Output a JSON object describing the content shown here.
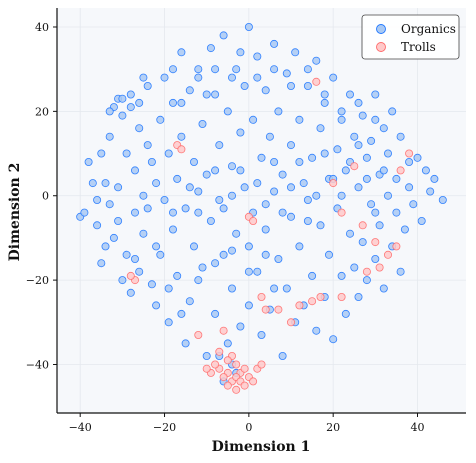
{
  "chart_data": {
    "type": "scatter",
    "title": "",
    "xlabel": "Dimension 1",
    "ylabel": "Dimension 2",
    "xlim": [
      -45.5,
      51.5
    ],
    "ylim": [
      -51.5,
      44.5
    ],
    "x_ticks": [
      -40,
      -20,
      0,
      20,
      40
    ],
    "y_ticks": [
      -40,
      -20,
      0,
      20,
      40
    ],
    "x_tick_labels": [
      "−40",
      "−20",
      "0",
      "20",
      "40"
    ],
    "y_tick_labels": [
      "−40",
      "−20",
      "0",
      "20",
      "40"
    ],
    "grid": true,
    "legend_position": "top-right",
    "series": [
      {
        "name": "Organics",
        "color": "#1f77ff",
        "fill": "#a9c9f3",
        "points": [
          [
            -40,
            -5
          ],
          [
            -39,
            -4
          ],
          [
            -38,
            8
          ],
          [
            -37,
            3
          ],
          [
            -36,
            -7
          ],
          [
            -35,
            10
          ],
          [
            -35,
            -16
          ],
          [
            -34,
            3
          ],
          [
            -33,
            -2
          ],
          [
            -33,
            14
          ],
          [
            -32,
            -10
          ],
          [
            -32,
            21
          ],
          [
            -31,
            23
          ],
          [
            -31,
            2
          ],
          [
            -30,
            19
          ],
          [
            -30,
            -20
          ],
          [
            -29,
            -14
          ],
          [
            -29,
            10
          ],
          [
            -28,
            24
          ],
          [
            -28,
            -23
          ],
          [
            -27,
            6
          ],
          [
            -27,
            -4
          ],
          [
            -26,
            16
          ],
          [
            -26,
            -18
          ],
          [
            -25,
            0
          ],
          [
            -25,
            -9
          ],
          [
            -24,
            12
          ],
          [
            -24,
            26
          ],
          [
            -23,
            -21
          ],
          [
            -23,
            8
          ],
          [
            -22,
            3
          ],
          [
            -22,
            -26
          ],
          [
            -21,
            18
          ],
          [
            -21,
            -14
          ],
          [
            -20,
            28
          ],
          [
            -20,
            -1
          ],
          [
            -19,
            10
          ],
          [
            -19,
            -30
          ],
          [
            -18,
            22
          ],
          [
            -18,
            -8
          ],
          [
            -17,
            4
          ],
          [
            -17,
            -19
          ],
          [
            -16,
            34
          ],
          [
            -16,
            14
          ],
          [
            -15,
            -3
          ],
          [
            -15,
            -35
          ],
          [
            -14,
            25
          ],
          [
            -14,
            -25
          ],
          [
            -13,
            8
          ],
          [
            -13,
            -12
          ],
          [
            -12,
            30
          ],
          [
            -12,
            1
          ],
          [
            -11,
            17
          ],
          [
            -11,
            -17
          ],
          [
            -10,
            5
          ],
          [
            -10,
            -38
          ],
          [
            -9,
            35
          ],
          [
            -9,
            -6
          ],
          [
            -8,
            24
          ],
          [
            -8,
            -28
          ],
          [
            -7,
            12
          ],
          [
            -7,
            -1
          ],
          [
            -6,
            38
          ],
          [
            -6,
            -14
          ],
          [
            -5,
            20
          ],
          [
            -5,
            -35
          ],
          [
            -4,
            7
          ],
          [
            -4,
            -22
          ],
          [
            -3,
            30
          ],
          [
            -3,
            -9
          ],
          [
            -2,
            15
          ],
          [
            -2,
            -31
          ],
          [
            -1,
            26
          ],
          [
            -1,
            2
          ],
          [
            0,
            40
          ],
          [
            0,
            -12
          ],
          [
            0,
            -26
          ],
          [
            1,
            18
          ],
          [
            1,
            -4
          ],
          [
            2,
            33
          ],
          [
            2,
            -18
          ],
          [
            3,
            9
          ],
          [
            3,
            -33
          ],
          [
            4,
            25
          ],
          [
            4,
            -8
          ],
          [
            5,
            14
          ],
          [
            5,
            -27
          ],
          [
            6,
            36
          ],
          [
            6,
            1
          ],
          [
            7,
            20
          ],
          [
            7,
            -15
          ],
          [
            8,
            5
          ],
          [
            8,
            -38
          ],
          [
            9,
            29
          ],
          [
            9,
            -22
          ],
          [
            10,
            12
          ],
          [
            10,
            -5
          ],
          [
            11,
            34
          ],
          [
            11,
            -30
          ],
          [
            12,
            18
          ],
          [
            12,
            -12
          ],
          [
            13,
            3
          ],
          [
            13,
            -26
          ],
          [
            14,
            26
          ],
          [
            14,
            -1
          ],
          [
            15,
            9
          ],
          [
            15,
            -19
          ],
          [
            16,
            32
          ],
          [
            16,
            -32
          ],
          [
            17,
            16
          ],
          [
            17,
            -7
          ],
          [
            18,
            22
          ],
          [
            18,
            -24
          ],
          [
            19,
            4
          ],
          [
            19,
            -14
          ],
          [
            20,
            28
          ],
          [
            20,
            -34
          ],
          [
            21,
            11
          ],
          [
            21,
            -3
          ],
          [
            22,
            18
          ],
          [
            22,
            -19
          ],
          [
            23,
            6
          ],
          [
            23,
            -28
          ],
          [
            24,
            24
          ],
          [
            24,
            -9
          ],
          [
            25,
            14
          ],
          [
            25,
            -17
          ],
          [
            26,
            2
          ],
          [
            26,
            -24
          ],
          [
            27,
            19
          ],
          [
            27,
            -11
          ],
          [
            28,
            9
          ],
          [
            28,
            -20
          ],
          [
            29,
            -2
          ],
          [
            29,
            13
          ],
          [
            30,
            24
          ],
          [
            30,
            -15
          ],
          [
            31,
            5
          ],
          [
            31,
            -7
          ],
          [
            32,
            16
          ],
          [
            32,
            -22
          ],
          [
            33,
            0
          ],
          [
            33,
            10
          ],
          [
            34,
            -12
          ],
          [
            34,
            20
          ],
          [
            35,
            4
          ],
          [
            35,
            -4
          ],
          [
            36,
            14
          ],
          [
            36,
            -18
          ],
          [
            37,
            -8
          ],
          [
            38,
            8
          ],
          [
            38,
            2
          ],
          [
            39,
            -2
          ],
          [
            40,
            9
          ],
          [
            41,
            -6
          ],
          [
            42,
            6
          ],
          [
            43,
            1
          ],
          [
            44,
            4
          ],
          [
            46,
            -1
          ],
          [
            -33,
            20
          ],
          [
            -30,
            23
          ],
          [
            -28,
            21
          ],
          [
            -26,
            22
          ],
          [
            -24,
            -3
          ],
          [
            -22,
            -12
          ],
          [
            -18,
            -4
          ],
          [
            -14,
            2
          ],
          [
            -12,
            -4
          ],
          [
            -8,
            6
          ],
          [
            -6,
            -3
          ],
          [
            -4,
            0
          ],
          [
            -2,
            6
          ],
          [
            2,
            3
          ],
          [
            4,
            -2
          ],
          [
            6,
            8
          ],
          [
            8,
            -4
          ],
          [
            10,
            2
          ],
          [
            12,
            8
          ],
          [
            14,
            -6
          ],
          [
            16,
            0
          ],
          [
            18,
            10
          ],
          [
            20,
            4
          ],
          [
            22,
            0
          ],
          [
            24,
            8
          ],
          [
            26,
            12
          ],
          [
            28,
            4
          ],
          [
            30,
            -4
          ],
          [
            32,
            6
          ],
          [
            -19,
            -22
          ],
          [
            -16,
            -28
          ],
          [
            -12,
            -20
          ],
          [
            -8,
            -16
          ],
          [
            -4,
            -13
          ],
          [
            0,
            -18
          ],
          [
            4,
            -14
          ],
          [
            6,
            -22
          ],
          [
            -7,
            -38
          ],
          [
            -3,
            -42
          ],
          [
            -6,
            -44
          ],
          [
            -4,
            -40
          ],
          [
            -12,
            28
          ],
          [
            -10,
            24
          ],
          [
            -8,
            30
          ],
          [
            -4,
            28
          ],
          [
            -2,
            34
          ],
          [
            2,
            28
          ],
          [
            6,
            30
          ],
          [
            10,
            26
          ],
          [
            14,
            30
          ],
          [
            18,
            24
          ],
          [
            22,
            20
          ],
          [
            26,
            22
          ],
          [
            30,
            18
          ],
          [
            -25,
            28
          ],
          [
            -16,
            22
          ],
          [
            -18,
            30
          ],
          [
            -36,
            -1
          ],
          [
            -34,
            -12
          ],
          [
            -31,
            -6
          ],
          [
            -27,
            -15
          ]
        ]
      },
      {
        "name": "Trolls",
        "color": "#ff6b6b",
        "fill": "#ffc9c9",
        "points": [
          [
            -17,
            12
          ],
          [
            -16,
            11
          ],
          [
            -27,
            -20
          ],
          [
            0,
            -5
          ],
          [
            1,
            -6
          ],
          [
            3,
            -24
          ],
          [
            4,
            -27
          ],
          [
            7,
            -27
          ],
          [
            12,
            -26
          ],
          [
            15,
            -25
          ],
          [
            17,
            -24
          ],
          [
            22,
            -4
          ],
          [
            27,
            -7
          ],
          [
            30,
            -11
          ],
          [
            33,
            -14
          ],
          [
            35,
            -12
          ],
          [
            20,
            3
          ],
          [
            25,
            7
          ],
          [
            28,
            -18
          ],
          [
            31,
            -17
          ],
          [
            -12,
            -33
          ],
          [
            -6,
            -32
          ],
          [
            -4,
            -38
          ],
          [
            -3,
            -40
          ],
          [
            -2,
            -42
          ],
          [
            -1,
            -41
          ],
          [
            -5,
            -42
          ],
          [
            -7,
            -41
          ],
          [
            -6,
            -43
          ],
          [
            -4,
            -44
          ],
          [
            -3,
            -43
          ],
          [
            -2,
            -44
          ],
          [
            -5,
            -45
          ],
          [
            -9,
            -42
          ],
          [
            -8,
            -40
          ],
          [
            -10,
            -41
          ],
          [
            2,
            -41
          ],
          [
            3,
            -40
          ],
          [
            -1,
            -45
          ],
          [
            -3,
            -46
          ],
          [
            -5,
            -39
          ],
          [
            0,
            -43
          ],
          [
            1,
            -44
          ],
          [
            -7,
            -37
          ],
          [
            16,
            27
          ],
          [
            36,
            6
          ],
          [
            38,
            10
          ],
          [
            22,
            -24
          ],
          [
            10,
            -30
          ],
          [
            -28,
            -19
          ]
        ]
      }
    ]
  }
}
